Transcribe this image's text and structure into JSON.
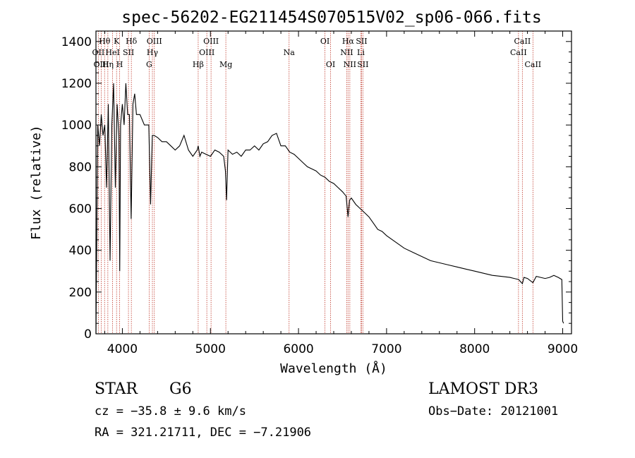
{
  "chart_data": {
    "type": "line",
    "title": "spec-56202-EG211454S070515V02_sp06-066.fits",
    "xlabel": "Wavelength (Å)",
    "ylabel": "Flux (relative)",
    "xlim": [
      3700,
      9100
    ],
    "ylim": [
      0,
      1450
    ],
    "x_ticks": [
      "4000",
      "5000",
      "6000",
      "7000",
      "8000",
      "9000"
    ],
    "y_ticks": [
      "0",
      "200",
      "400",
      "600",
      "800",
      "1000",
      "1200",
      "1400"
    ],
    "series": [
      {
        "name": "spectrum",
        "x": [
          3700,
          3720,
          3740,
          3760,
          3780,
          3800,
          3820,
          3840,
          3860,
          3880,
          3900,
          3920,
          3940,
          3960,
          3970,
          3980,
          4000,
          4020,
          4040,
          4060,
          4080,
          4100,
          4120,
          4140,
          4160,
          4180,
          4200,
          4250,
          4300,
          4320,
          4340,
          4360,
          4400,
          4450,
          4500,
          4550,
          4600,
          4650,
          4700,
          4750,
          4800,
          4850,
          4861,
          4880,
          4900,
          4950,
          5000,
          5050,
          5100,
          5150,
          5170,
          5183,
          5200,
          5250,
          5300,
          5350,
          5400,
          5450,
          5500,
          5550,
          5600,
          5650,
          5700,
          5750,
          5800,
          5850,
          5900,
          5950,
          6000,
          6050,
          6100,
          6150,
          6200,
          6250,
          6300,
          6350,
          6400,
          6450,
          6500,
          6520,
          6540,
          6563,
          6580,
          6600,
          6650,
          6700,
          6750,
          6800,
          6850,
          6900,
          6950,
          7000,
          7100,
          7200,
          7300,
          7400,
          7500,
          7600,
          7700,
          7800,
          7900,
          8000,
          8100,
          8200,
          8300,
          8400,
          8450,
          8500,
          8542,
          8560,
          8600,
          8662,
          8700,
          8750,
          8800,
          8850,
          8900,
          8950,
          8990,
          9000,
          9010
        ],
        "y": [
          0,
          1000,
          900,
          1050,
          950,
          1000,
          700,
          1100,
          350,
          1000,
          1200,
          700,
          1100,
          950,
          300,
          1000,
          1100,
          1000,
          1200,
          1050,
          1050,
          550,
          1100,
          1150,
          1050,
          1050,
          1050,
          1000,
          1000,
          620,
          950,
          950,
          940,
          920,
          920,
          900,
          880,
          900,
          950,
          880,
          850,
          880,
          900,
          850,
          870,
          860,
          850,
          880,
          870,
          850,
          780,
          640,
          880,
          860,
          870,
          850,
          880,
          880,
          900,
          880,
          910,
          920,
          950,
          960,
          900,
          900,
          870,
          860,
          840,
          820,
          800,
          790,
          780,
          760,
          750,
          730,
          720,
          700,
          680,
          670,
          660,
          560,
          640,
          650,
          620,
          600,
          580,
          560,
          530,
          500,
          490,
          470,
          440,
          410,
          390,
          370,
          350,
          340,
          330,
          320,
          310,
          300,
          290,
          280,
          275,
          270,
          265,
          260,
          240,
          270,
          265,
          245,
          275,
          270,
          265,
          270,
          280,
          270,
          260,
          60,
          50
        ]
      }
    ],
    "spectral_lines": [
      {
        "label": "Hθ",
        "x": 3798,
        "row": 1
      },
      {
        "label": "OII",
        "x": 3727,
        "row": 2
      },
      {
        "label": "OIII",
        "x": 3760,
        "row": 3
      },
      {
        "label": "K",
        "x": 3934,
        "row": 1
      },
      {
        "label": "HeI",
        "x": 3889,
        "row": 2
      },
      {
        "label": "Hη",
        "x": 3835,
        "row": 3
      },
      {
        "label": "SII",
        "x": 4069,
        "row": 2
      },
      {
        "label": "H",
        "x": 3969,
        "row": 3
      },
      {
        "label": "Hδ",
        "x": 4102,
        "row": 1
      },
      {
        "label": "OIII",
        "x": 4363,
        "row": 1
      },
      {
        "label": "Hγ",
        "x": 4341,
        "row": 2
      },
      {
        "label": "G",
        "x": 4304,
        "row": 3
      },
      {
        "label": "Hβ",
        "x": 4861,
        "row": 3
      },
      {
        "label": "OIII",
        "x": 5007,
        "row": 1
      },
      {
        "label": "OIII",
        "x": 4959,
        "row": 2
      },
      {
        "label": "Mg",
        "x": 5175,
        "row": 3
      },
      {
        "label": "Na",
        "x": 5893,
        "row": 2
      },
      {
        "label": "OI",
        "x": 6300,
        "row": 1
      },
      {
        "label": "OI",
        "x": 6364,
        "row": 3
      },
      {
        "label": "Hα",
        "x": 6563,
        "row": 1
      },
      {
        "label": "SII",
        "x": 6716,
        "row": 1
      },
      {
        "label": "NII",
        "x": 6548,
        "row": 2
      },
      {
        "label": "Li",
        "x": 6708,
        "row": 2
      },
      {
        "label": "NII",
        "x": 6583,
        "row": 3
      },
      {
        "label": "SII",
        "x": 6731,
        "row": 3
      },
      {
        "label": "CaII",
        "x": 8542,
        "row": 1
      },
      {
        "label": "CaII",
        "x": 8498,
        "row": 2
      },
      {
        "label": "CaII",
        "x": 8662,
        "row": 3
      }
    ]
  },
  "info": {
    "object_class": "STAR",
    "subclass": "G6",
    "survey": "LAMOST DR3",
    "redshift_text": "cz = −35.8 ± 9.6 km/s",
    "obs_date": "Obs−Date: 20121001",
    "coords": "RA = 321.21711, DEC =  −7.21906"
  }
}
